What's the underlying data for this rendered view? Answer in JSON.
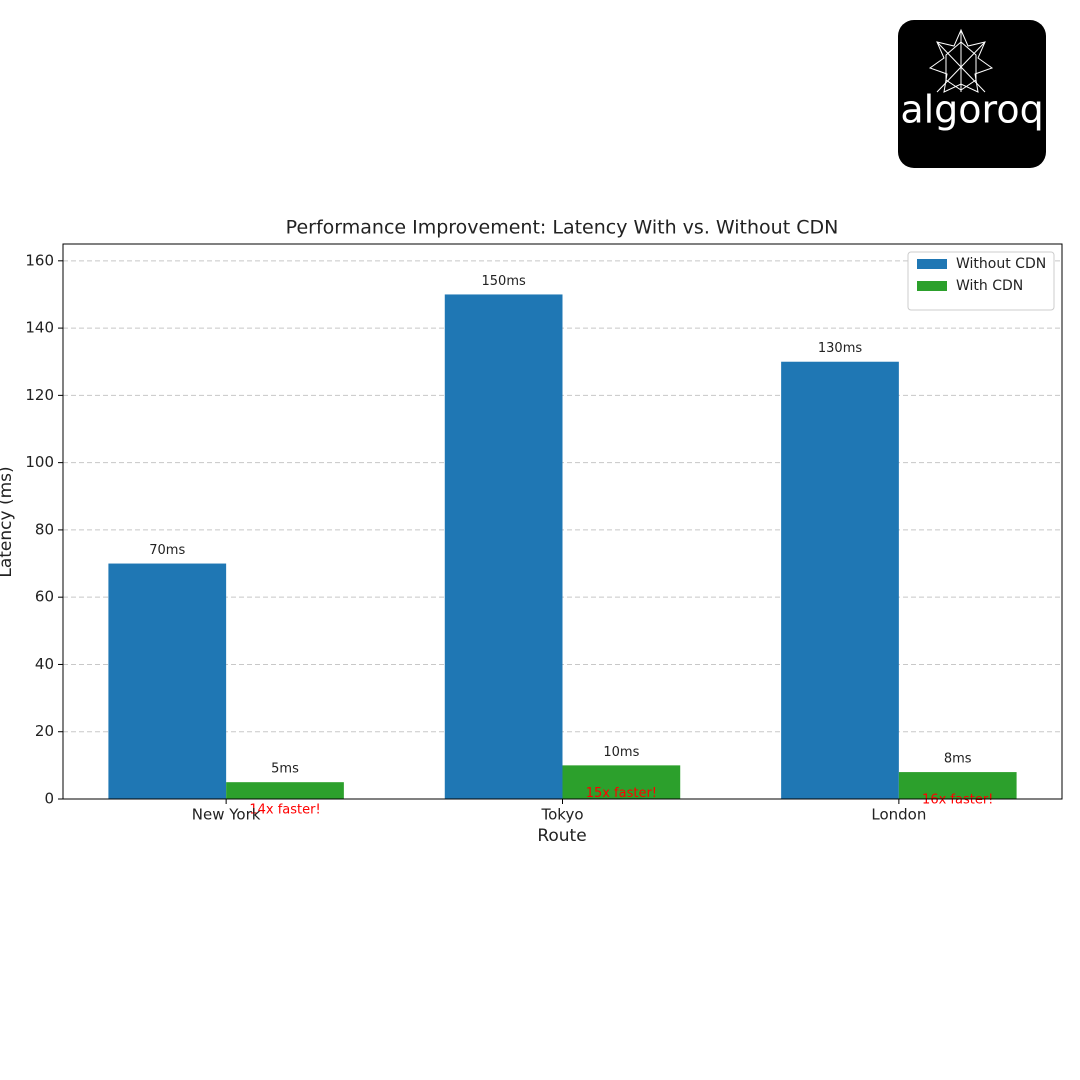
{
  "logo": "algoroq",
  "chart_data": {
    "type": "bar",
    "title": "Performance Improvement: Latency With vs. Without CDN",
    "x_label": "Route",
    "y_label": "Latency (ms)",
    "categories": [
      "New York",
      "Tokyo",
      "London"
    ],
    "series": [
      {
        "name": "Without CDN",
        "color": "#1f77b4",
        "values": [
          70,
          150,
          130
        ],
        "value_labels": [
          "70ms",
          "150ms",
          "130ms"
        ]
      },
      {
        "name": "With CDN",
        "color": "#2ca02c",
        "values": [
          5,
          10,
          8
        ],
        "value_labels": [
          "5ms",
          "10ms",
          "8ms"
        ]
      }
    ],
    "annotations": [
      "14x faster!",
      "15x faster!",
      "16x faster!"
    ],
    "annotation_color": "#ff0000",
    "ylim": [
      0,
      165
    ],
    "yticks": [
      0,
      20,
      40,
      60,
      80,
      100,
      120,
      140,
      160
    ],
    "grid": true,
    "legend": "upper right"
  }
}
